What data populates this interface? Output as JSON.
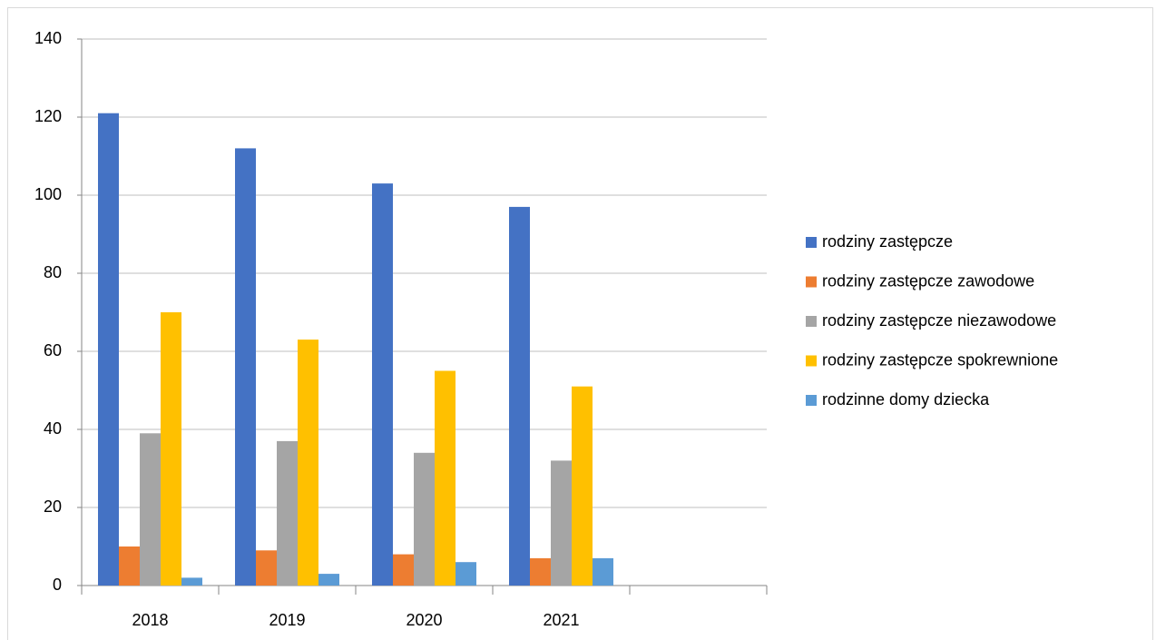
{
  "chart_data": {
    "type": "bar",
    "categories": [
      "2018",
      "2019",
      "2020",
      "2021",
      null
    ],
    "series": [
      {
        "name": "rodziny zastępcze",
        "color": "#4472c4",
        "values": [
          121,
          112,
          103,
          97,
          null
        ]
      },
      {
        "name": "rodziny zastępcze zawodowe",
        "color": "#ed7d31",
        "values": [
          10,
          9,
          8,
          7,
          null
        ]
      },
      {
        "name": "rodziny zastępcze niezawodowe",
        "color": "#a5a5a5",
        "values": [
          39,
          37,
          34,
          32,
          null
        ]
      },
      {
        "name": "rodziny zastępcze spokrewnione",
        "color": "#ffc000",
        "values": [
          70,
          63,
          55,
          51,
          null
        ]
      },
      {
        "name": "rodzinne domy dziecka",
        "color": "#5b9bd5",
        "values": [
          2,
          3,
          6,
          7,
          null
        ]
      }
    ],
    "ylim": [
      0,
      140
    ],
    "yticks": [
      0,
      20,
      40,
      60,
      80,
      100,
      120,
      140
    ],
    "grid": true,
    "legend": "right"
  }
}
